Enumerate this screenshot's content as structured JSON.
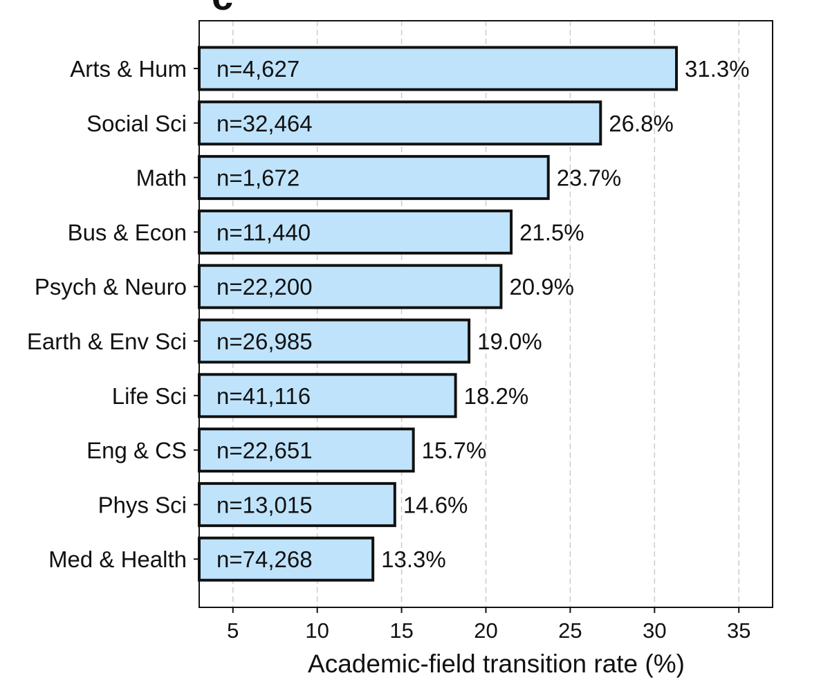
{
  "panel_label": "c",
  "chart_data": {
    "type": "bar",
    "orientation": "horizontal",
    "title": "",
    "xlabel": "Academic-field transition rate (%)",
    "ylabel": "",
    "xlim": [
      3,
      37
    ],
    "xticks": [
      5,
      10,
      15,
      20,
      25,
      30,
      35
    ],
    "grid": "vertical dashed",
    "bar_color": "#bfe3fb",
    "bar_edge_color": "#111111",
    "categories": [
      "Arts & Hum",
      "Social Sci",
      "Math",
      "Bus & Econ",
      "Psych & Neuro",
      "Earth & Env Sci",
      "Life Sci",
      "Eng & CS",
      "Phys Sci",
      "Med & Health"
    ],
    "values": [
      31.3,
      26.8,
      23.7,
      21.5,
      20.9,
      19.0,
      18.2,
      15.7,
      14.6,
      13.3
    ],
    "value_labels": [
      "31.3%",
      "26.8%",
      "23.7%",
      "21.5%",
      "20.9%",
      "19.0%",
      "18.2%",
      "15.7%",
      "14.6%",
      "13.3%"
    ],
    "n_labels": [
      "n=4,627",
      "n=32,464",
      "n=1,672",
      "n=11,440",
      "n=22,200",
      "n=26,985",
      "n=41,116",
      "n=22,651",
      "n=13,015",
      "n=74,268"
    ]
  }
}
